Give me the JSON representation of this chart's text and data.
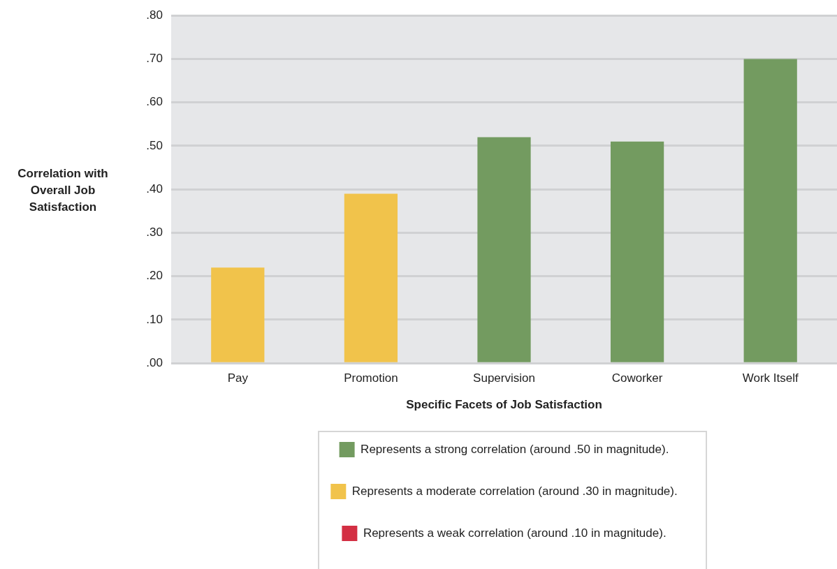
{
  "chart_data": {
    "type": "bar",
    "xlabel": "Specific Facets of Job Satisfaction",
    "ylabel": "Correlation with Overall Job Satisfaction",
    "categories": [
      "Pay",
      "Promotion",
      "Supervision",
      "Coworker",
      "Work Itself"
    ],
    "stacked": true,
    "series": [
      {
        "name": "Represents a strong correlation (around .50 in magnitude).",
        "color": "#739b60",
        "values": [
          null,
          null,
          0.52,
          0.51,
          0.7
        ]
      },
      {
        "name": "Represents a moderate correlation (around .30 in magnitude).",
        "color": "#f1c34b",
        "values": [
          0.22,
          0.39,
          null,
          null,
          null
        ]
      },
      {
        "name": "Represents a weak correlation (around .10 in magnitude).",
        "color": "#d32f43",
        "values": [
          null,
          null,
          null,
          null,
          null
        ]
      }
    ],
    "ylim": [
      0,
      0.8
    ],
    "yticks": [
      {
        "value": 0,
        "label": ".00"
      },
      {
        "value": 0.1,
        "label": ".10"
      },
      {
        "value": 0.2,
        "label": ".20"
      },
      {
        "value": 0.3,
        "label": ".30"
      },
      {
        "value": 0.4,
        "label": ".40"
      },
      {
        "value": 0.5,
        "label": ".50"
      },
      {
        "value": 0.6,
        "label": ".60"
      },
      {
        "value": 0.7,
        "label": ".70"
      },
      {
        "value": 0.8,
        "label": ".80"
      }
    ],
    "grid": "y",
    "legend": "bottom"
  }
}
